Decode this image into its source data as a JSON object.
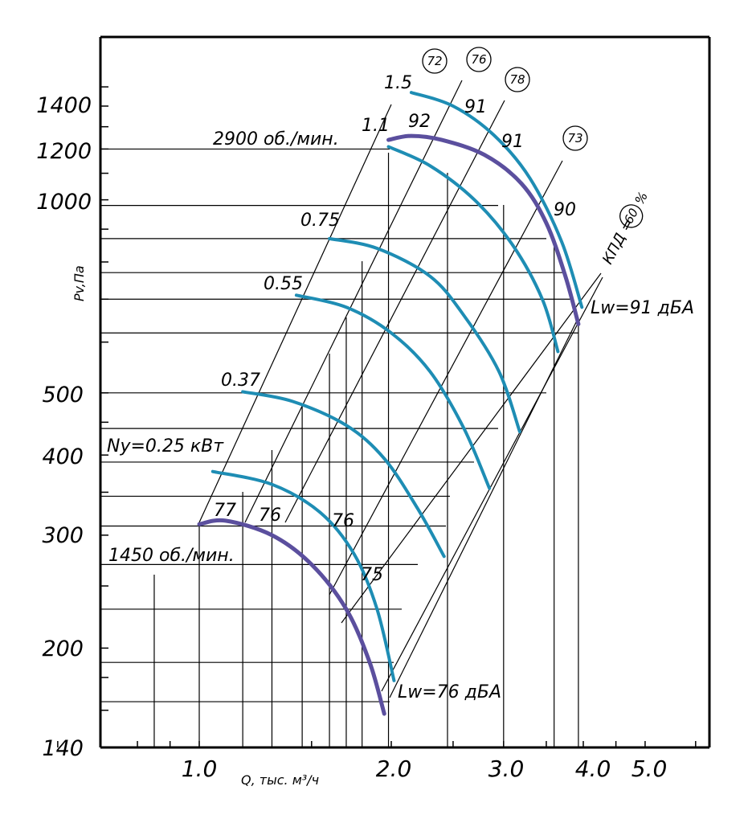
{
  "chart_data": {
    "type": "line",
    "y_scale": "log",
    "x_scale": "log",
    "ylabel": "Pv,Па",
    "xlabel": "Q, тыс. м³/ч",
    "y_ticks": [
      "1400",
      "1200",
      "1000",
      "500",
      "400",
      "300",
      "200",
      "140"
    ],
    "x_ticks": [
      "1.0",
      "2.0",
      "3.0",
      "4.0",
      "5.0"
    ],
    "speed_labels": [
      "2900 об./мин.",
      "1450 об./мин."
    ],
    "power_labels": [
      "1.5",
      "1.1",
      "0.75",
      "0.55",
      "0.37",
      "Ny=0.25 кВт"
    ],
    "efficiency_circles": [
      "72",
      "76",
      "78",
      "73"
    ],
    "efficiency_label_prefix": "КПД =",
    "efficiency_label_value": "60",
    "efficiency_label_suffix": "%",
    "noise_labels_top": [
      "92",
      "91",
      "91",
      "90"
    ],
    "noise_labels_bottom": [
      "77",
      "76",
      "76",
      "75"
    ],
    "lw_top": "Lw=91 дБА",
    "lw_bottom": "Lw=76 дБА",
    "series": [
      {
        "name": "2900 об./мин.",
        "color": "#5b4f9e",
        "points": [
          [
            1.98,
            1240
          ],
          [
            2.15,
            1258
          ],
          [
            2.4,
            1240
          ],
          [
            2.8,
            1175
          ],
          [
            3.2,
            1060
          ],
          [
            3.5,
            920
          ],
          [
            3.75,
            760
          ],
          [
            3.93,
            640
          ]
        ]
      },
      {
        "name": "1450 об./мин.",
        "color": "#5b4f9e",
        "points": [
          [
            1.0,
            312
          ],
          [
            1.1,
            316
          ],
          [
            1.3,
            300
          ],
          [
            1.5,
            270
          ],
          [
            1.7,
            230
          ],
          [
            1.85,
            190
          ],
          [
            1.95,
            158
          ]
        ]
      },
      {
        "name": "1.5",
        "color": "#1e8db4",
        "points": [
          [
            2.15,
            1470
          ],
          [
            2.5,
            1400
          ],
          [
            2.9,
            1260
          ],
          [
            3.3,
            1080
          ],
          [
            3.7,
            860
          ],
          [
            3.98,
            680
          ]
        ]
      },
      {
        "name": "1.1",
        "color": "#1e8db4",
        "points": [
          [
            1.98,
            1210
          ],
          [
            2.3,
            1130
          ],
          [
            2.7,
            1000
          ],
          [
            3.1,
            850
          ],
          [
            3.45,
            700
          ],
          [
            3.65,
            580
          ]
        ]
      },
      {
        "name": "0.75",
        "color": "#1e8db4",
        "points": [
          [
            1.6,
            870
          ],
          [
            1.9,
            840
          ],
          [
            2.3,
            760
          ],
          [
            2.6,
            660
          ],
          [
            2.95,
            540
          ],
          [
            3.18,
            435
          ]
        ]
      },
      {
        "name": "0.55",
        "color": "#1e8db4",
        "points": [
          [
            1.42,
            710
          ],
          [
            1.7,
            680
          ],
          [
            2.0,
            620
          ],
          [
            2.3,
            540
          ],
          [
            2.6,
            440
          ],
          [
            2.85,
            355
          ]
        ]
      },
      {
        "name": "0.37",
        "color": "#1e8db4",
        "points": [
          [
            1.17,
            502
          ],
          [
            1.4,
            485
          ],
          [
            1.7,
            445
          ],
          [
            1.95,
            395
          ],
          [
            2.2,
            330
          ],
          [
            2.42,
            278
          ]
        ]
      },
      {
        "name": "Ny=0.25 кВт",
        "color": "#1e8db4",
        "points": [
          [
            1.05,
            377
          ],
          [
            1.3,
            360
          ],
          [
            1.55,
            325
          ],
          [
            1.75,
            280
          ],
          [
            1.9,
            230
          ],
          [
            2.02,
            178
          ]
        ]
      }
    ]
  }
}
